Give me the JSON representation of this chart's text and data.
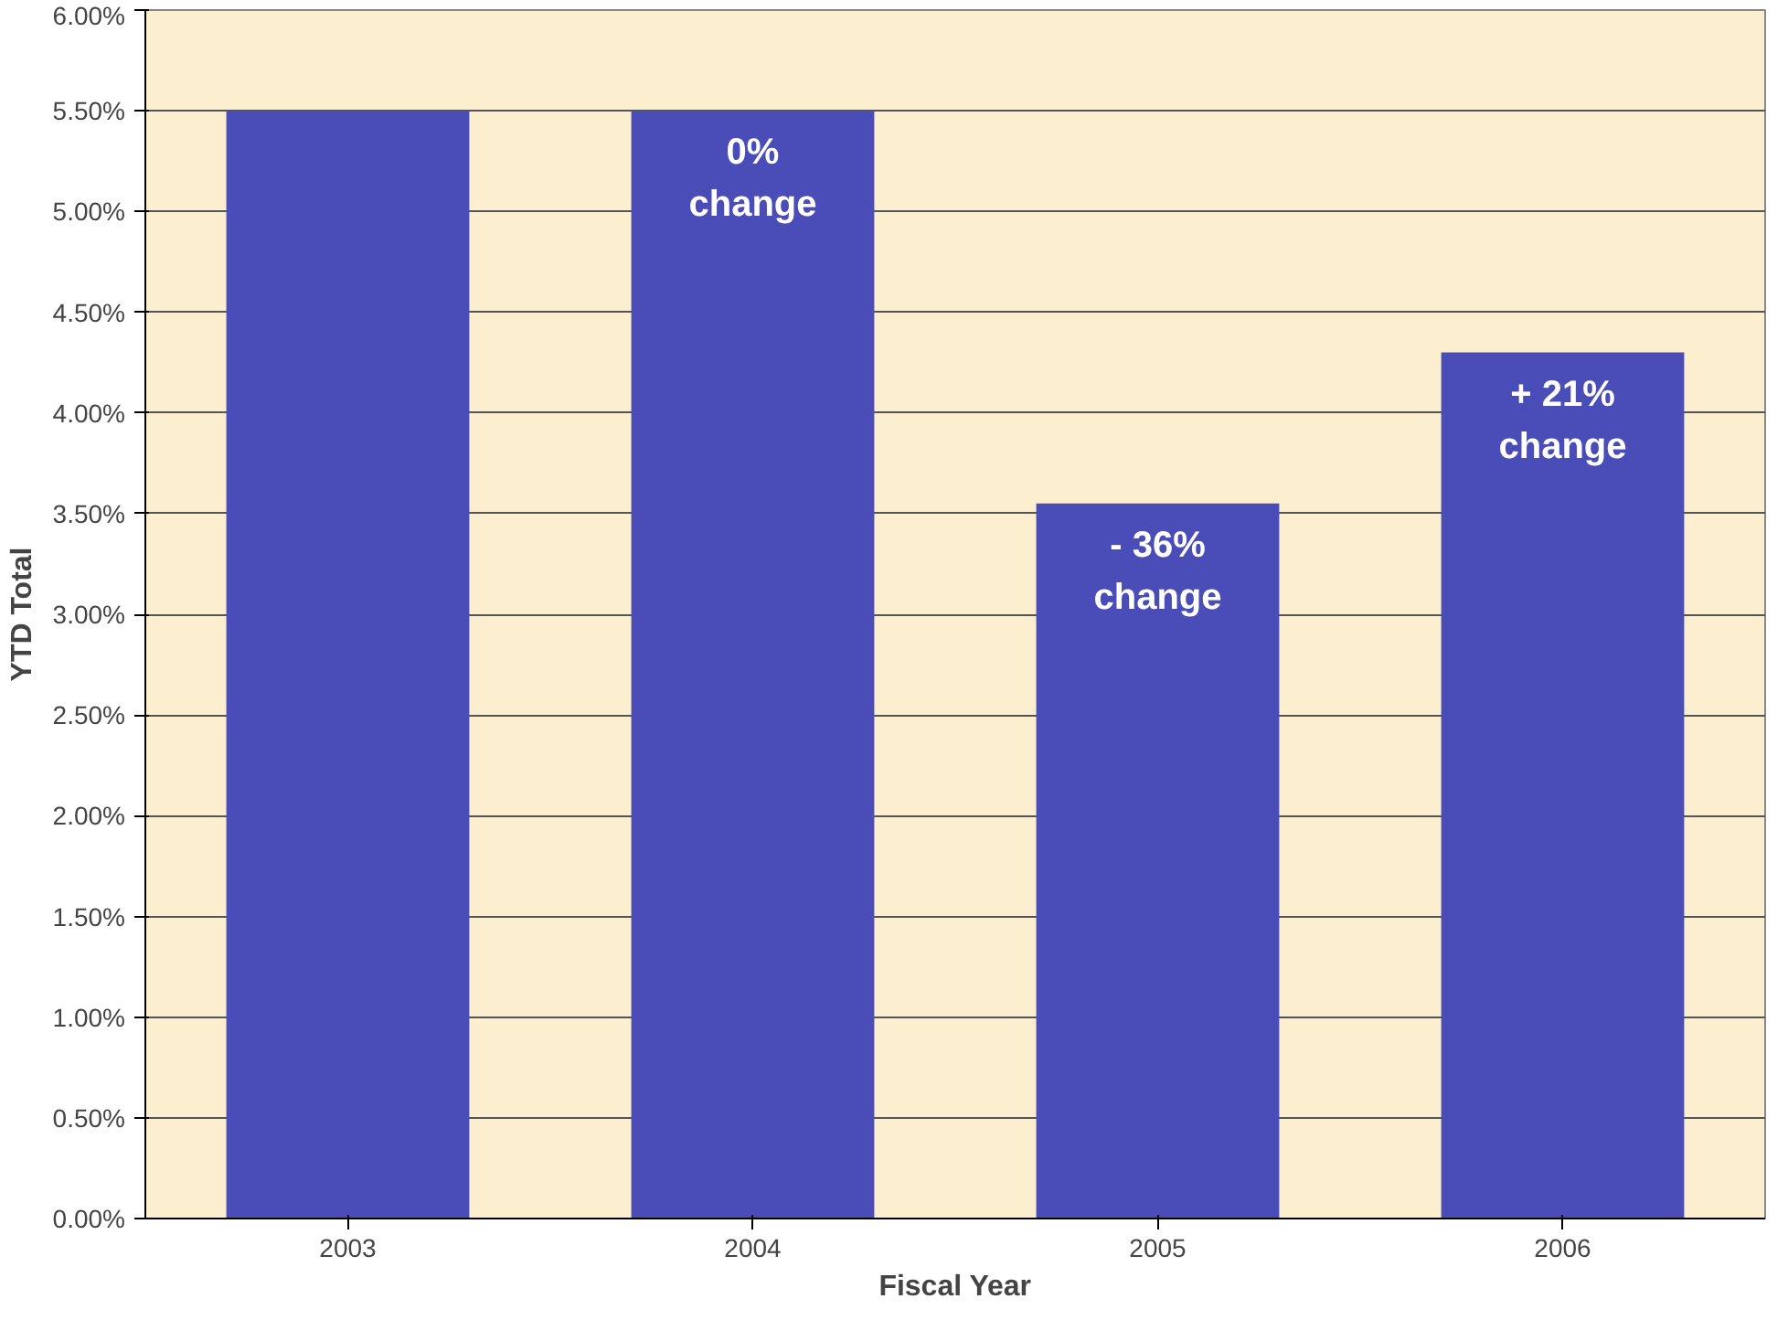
{
  "chart_data": {
    "type": "bar",
    "xlabel": "Fiscal Year",
    "ylabel": "YTD Total",
    "categories": [
      "2003",
      "2004",
      "2005",
      "2006"
    ],
    "values": [
      5.5,
      5.5,
      3.55,
      4.3
    ],
    "color": "#4a4db8",
    "ylim": [
      0,
      6
    ],
    "yticks": [
      {
        "value": 0,
        "label": "0.00%"
      },
      {
        "value": 0.5,
        "label": "0.50%"
      },
      {
        "value": 1,
        "label": "1.00%"
      },
      {
        "value": 1.5,
        "label": "1.50%"
      },
      {
        "value": 2,
        "label": "2.00%"
      },
      {
        "value": 2.5,
        "label": "2.50%"
      },
      {
        "value": 3,
        "label": "3.00%"
      },
      {
        "value": 3.5,
        "label": "3.50%"
      },
      {
        "value": 4,
        "label": "4.00%"
      },
      {
        "value": 4.5,
        "label": "4.50%"
      },
      {
        "value": 5,
        "label": "5.00%"
      },
      {
        "value": 5.5,
        "label": "5.50%"
      },
      {
        "value": 6,
        "label": "6.00%"
      }
    ],
    "grid": "y",
    "annotations": [
      {
        "text": "0%\nchange",
        "x": "2004",
        "y": 5.5
      },
      {
        "text": "- 36%\nchange",
        "x": "2005",
        "y": 3.55
      },
      {
        "text": "+ 21%\nchange",
        "x": "2006",
        "y": 4.3
      }
    ]
  }
}
